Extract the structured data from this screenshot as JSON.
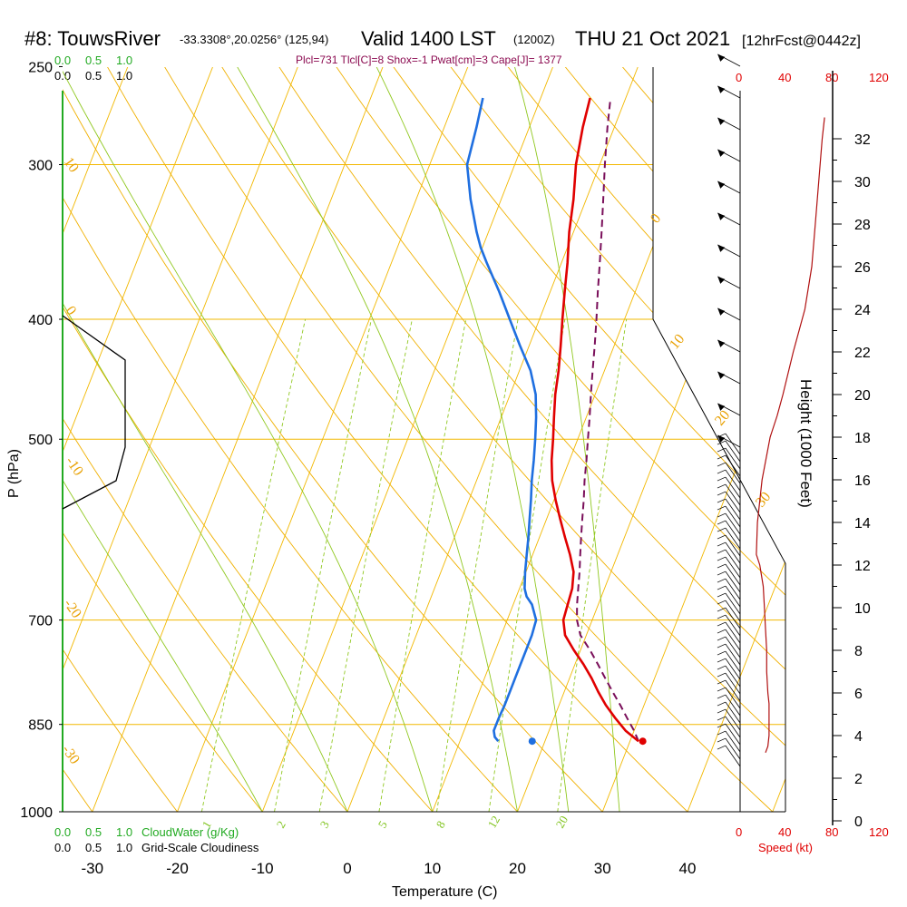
{
  "header": {
    "title": "#8: TouwsRiver",
    "location": "-33.3308°,20.0256° (125,94)",
    "valid": "Valid 1400 LST",
    "utc": "(1200Z)",
    "date": "THU 21 Oct 2021",
    "forecast": "[12hrFcst@0442z]",
    "params": "Plcl=731 Tlcl[C]=8 Shox=-1 Pwat[cm]=3 Cape[J]= 1377"
  },
  "cloud_scale": {
    "green_ticks": [
      "0.0",
      "0.5",
      "1.0"
    ],
    "black_ticks": [
      "0.0",
      "0.5",
      "1.0"
    ],
    "cloudwater_label": "CloudWater (g/Kg)",
    "cloudiness_label": "Grid-Scale Cloudiness"
  },
  "speed_scale": {
    "ticks": [
      "0",
      "40",
      "80",
      "120"
    ],
    "label": "Speed (kt)"
  },
  "chart_data": {
    "type": "skew-t",
    "xlabel": "Temperature (C)",
    "ylabel": "P (hPa)",
    "y2label": "Height (1000 Feet)",
    "x_ticks": [
      "-30",
      "-20",
      "-10",
      "0",
      "10",
      "20",
      "30",
      "40"
    ],
    "p_ticks": [
      "250",
      "300",
      "400",
      "500",
      "700",
      "850",
      "1000"
    ],
    "height_ticks": [
      "0",
      "2",
      "4",
      "6",
      "8",
      "10",
      "12",
      "14",
      "16",
      "18",
      "20",
      "22",
      "24",
      "26",
      "28",
      "30",
      "32"
    ],
    "isotherm_labels": [
      "10",
      "0",
      "-10",
      "-20",
      "-30",
      "0",
      "10",
      "20",
      "30"
    ],
    "mixing_ratio_labels": [
      "1",
      "2",
      "3",
      "5",
      "8",
      "12",
      "20"
    ],
    "temperature": {
      "pressure": [
        877,
        860,
        840,
        820,
        800,
        780,
        760,
        740,
        720,
        700,
        680,
        660,
        640,
        620,
        600,
        580,
        560,
        540,
        520,
        500,
        480,
        460,
        440,
        420,
        400,
        380,
        360,
        340,
        320,
        300,
        280,
        265
      ],
      "temp_c": [
        31.0,
        29.0,
        27.2,
        25.5,
        24.0,
        22.6,
        21.0,
        19.2,
        17.5,
        16.6,
        16.4,
        16.2,
        15.6,
        14.4,
        13.0,
        11.6,
        10.2,
        8.9,
        7.9,
        7.1,
        6.2,
        5.3,
        4.6,
        3.7,
        2.7,
        1.7,
        0.7,
        -0.5,
        -1.5,
        -2.8,
        -3.7,
        -4.2
      ]
    },
    "dewpoint": {
      "pressure": [
        877,
        870,
        860,
        840,
        820,
        800,
        780,
        760,
        740,
        720,
        700,
        680,
        670,
        660,
        640,
        620,
        600,
        580,
        560,
        540,
        520,
        500,
        480,
        460,
        440,
        420,
        400,
        380,
        360,
        350,
        340,
        320,
        300,
        280,
        265
      ],
      "dewpoint_c": [
        14.5,
        13.9,
        13.5,
        13.5,
        13.6,
        13.6,
        13.6,
        13.6,
        13.6,
        13.6,
        13.4,
        12.2,
        11.2,
        10.6,
        9.9,
        9.3,
        8.7,
        8.0,
        7.3,
        6.5,
        5.8,
        5.0,
        4.1,
        3.0,
        1.3,
        -1.1,
        -3.5,
        -6.0,
        -8.8,
        -10.2,
        -11.4,
        -13.6,
        -15.6,
        -16.2,
        -16.8
      ]
    },
    "parcel": {
      "pressure": [
        877,
        860,
        840,
        820,
        800,
        780,
        760,
        740,
        731,
        720,
        700,
        680,
        660,
        640,
        620,
        600,
        580,
        560,
        540,
        520,
        500,
        480,
        460,
        440,
        420,
        400,
        380,
        360,
        340,
        320,
        300,
        280,
        265
      ],
      "temp_c": [
        31.0,
        30.0,
        28.6,
        27.2,
        25.7,
        24.2,
        22.7,
        21.1,
        20.3,
        19.3,
        18.2,
        17.5,
        16.9,
        16.3,
        15.6,
        14.9,
        14.2,
        13.5,
        12.7,
        12.0,
        11.2,
        10.4,
        9.5,
        8.6,
        7.7,
        6.7,
        5.6,
        4.5,
        3.3,
        2.0,
        0.6,
        -0.8,
        -1.8
      ]
    },
    "surface_points": {
      "temp_c": 31.5,
      "dewpoint_c": 18.5,
      "pressure": 877
    },
    "wind_profile": {
      "height_kft": [
        3.2,
        3.5,
        4,
        4.5,
        5,
        5.5,
        6,
        7,
        8,
        9,
        10,
        11,
        12,
        12.5,
        14,
        16,
        18,
        19,
        20,
        22,
        24,
        26,
        28,
        30,
        32,
        33
      ],
      "speed_kt": [
        22,
        24,
        25,
        25,
        25,
        25,
        24,
        23,
        23,
        22,
        21,
        20,
        17,
        14,
        15,
        19,
        26,
        32,
        37,
        46,
        56,
        62,
        65,
        68,
        71,
        73
      ]
    },
    "grid": "isobars, skewed isotherms, dry adiabats, moist adiabats, mixing-ratio lines"
  },
  "colors": {
    "temperature": "#e00000",
    "dewpoint": "#1f6fe0",
    "parcel": "#7a0f5a",
    "isobar": "#f2b800",
    "isotherm": "#f2b800",
    "dry_adiabat": "#f0b000",
    "moist_adiabat": "#90c820",
    "mixing_ratio": "#90c820",
    "cloud_axis": "#22aa22",
    "speed_line": "#b01010"
  }
}
